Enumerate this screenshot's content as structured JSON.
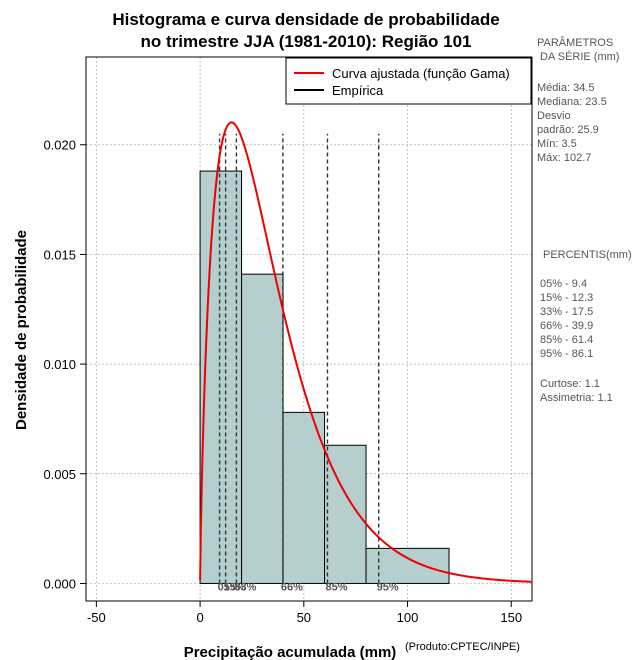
{
  "chart_data": {
    "type": "bar",
    "title": "Histograma e curva densidade de probabilidade",
    "subtitle": "no trimestre JJA (1981-2010): Região 101",
    "xlabel": "Precipitação acumulada (mm)",
    "ylabel": "Densidade de probabilidade",
    "credit": "(Produto:CPTEC/INPE)",
    "xlim": [
      -55,
      160
    ],
    "ylim": [
      -0.0008,
      0.024
    ],
    "xticks": [
      -50,
      0,
      50,
      100,
      150
    ],
    "yticks": [
      0.0,
      0.005,
      0.01,
      0.015,
      0.02
    ],
    "xtick_labels": [
      "-50",
      "0",
      "50",
      "100",
      "150"
    ],
    "ytick_labels": [
      "0.000",
      "0.005",
      "0.010",
      "0.015",
      "0.020"
    ],
    "grid": true,
    "bars": [
      {
        "x0": 0,
        "x1": 20,
        "value": 0.0188
      },
      {
        "x0": 20,
        "x1": 40,
        "value": 0.0141
      },
      {
        "x0": 40,
        "x1": 60,
        "value": 0.0078
      },
      {
        "x0": 60,
        "x1": 80,
        "value": 0.0063
      },
      {
        "x0": 80,
        "x1": 120,
        "value": 0.0016
      }
    ],
    "gamma_fit": {
      "shape": 1.78,
      "scale": 19.4
    },
    "legend": [
      {
        "label": "Curva ajustada (função Gama)",
        "color": "#ee0000"
      },
      {
        "label": "Empírica",
        "color": "#000000"
      }
    ],
    "percentile_lines": [
      {
        "value": 9.4,
        "label": "05%"
      },
      {
        "value": 12.3,
        "label": "15%"
      },
      {
        "value": 17.5,
        "label": "33%"
      },
      {
        "value": 39.9,
        "label": "66%"
      },
      {
        "value": 61.4,
        "label": "85%"
      },
      {
        "value": 86.1,
        "label": "95%"
      }
    ]
  },
  "sidebar": {
    "params_heading_1": "PARÂMETROS",
    "params_heading_2": "DA SÉRIE (mm)",
    "stats": [
      "Média:  34.5",
      "Mediana:  23.5",
      "Desvio",
      "padrão:  25.9",
      "Mín:  3.5",
      "Máx:  102.7"
    ],
    "percentis_heading": "PERCENTIS(mm)",
    "percentis": [
      "05% -  9.4",
      "15% -  12.3",
      "33% -  17.5",
      "66% -  39.9",
      "85% -  61.4",
      "95% -  86.1"
    ],
    "shape_stats": [
      "Curtose:  1.1",
      "Assimetria:  1.1"
    ]
  },
  "colors": {
    "bar_fill": "#b5cfcf",
    "curve": "#ee0000",
    "grid": "#aaaaaa",
    "percentile_line": "#333333"
  }
}
